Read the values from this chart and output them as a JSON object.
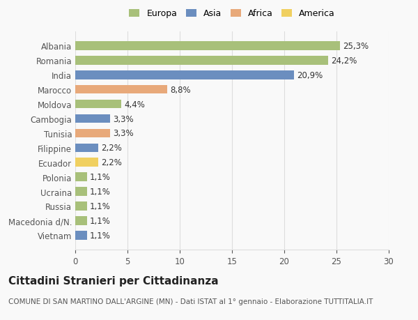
{
  "categories": [
    "Albania",
    "Romania",
    "India",
    "Marocco",
    "Moldova",
    "Cambogia",
    "Tunisia",
    "Filippine",
    "Ecuador",
    "Polonia",
    "Ucraina",
    "Russia",
    "Macedonia d/N.",
    "Vietnam"
  ],
  "values": [
    25.3,
    24.2,
    20.9,
    8.8,
    4.4,
    3.3,
    3.3,
    2.2,
    2.2,
    1.1,
    1.1,
    1.1,
    1.1,
    1.1
  ],
  "labels": [
    "25,3%",
    "24,2%",
    "20,9%",
    "8,8%",
    "4,4%",
    "3,3%",
    "3,3%",
    "2,2%",
    "2,2%",
    "1,1%",
    "1,1%",
    "1,1%",
    "1,1%",
    "1,1%"
  ],
  "continents": [
    "Europa",
    "Europa",
    "Asia",
    "Africa",
    "Europa",
    "Asia",
    "Africa",
    "Asia",
    "America",
    "Europa",
    "Europa",
    "Europa",
    "Europa",
    "Asia"
  ],
  "continent_colors": {
    "Europa": "#a8c07a",
    "Asia": "#6b8ebf",
    "Africa": "#e8a97a",
    "America": "#f0d060"
  },
  "legend_items": [
    "Europa",
    "Asia",
    "Africa",
    "America"
  ],
  "xlim": [
    0,
    30
  ],
  "xticks": [
    0,
    5,
    10,
    15,
    20,
    25,
    30
  ],
  "title": "Cittadini Stranieri per Cittadinanza",
  "subtitle": "COMUNE DI SAN MARTINO DALL'ARGINE (MN) - Dati ISTAT al 1° gennaio - Elaborazione TUTTITALIA.IT",
  "background_color": "#f9f9f9",
  "grid_color": "#dddddd",
  "bar_height": 0.6,
  "label_fontsize": 8.5,
  "tick_fontsize": 8.5,
  "title_fontsize": 11,
  "subtitle_fontsize": 7.5
}
